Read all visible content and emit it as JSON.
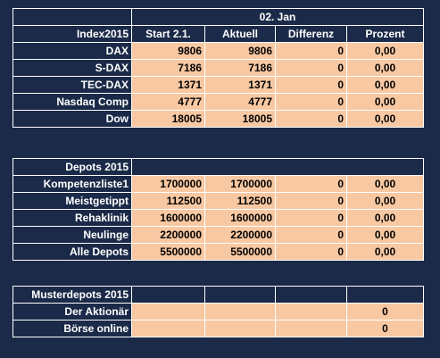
{
  "index": {
    "date": "02. Jan",
    "headers": [
      "Index2015",
      "Start 2.1.",
      "Aktuell",
      "Differenz",
      "Prozent"
    ],
    "rows": [
      {
        "name": "DAX",
        "start": "9806",
        "current": "9806",
        "diff": "0",
        "pct": "0,00"
      },
      {
        "name": "S-DAX",
        "start": "7186",
        "current": "7186",
        "diff": "0",
        "pct": "0,00"
      },
      {
        "name": "TEC-DAX",
        "start": "1371",
        "current": "1371",
        "diff": "0",
        "pct": "0,00"
      },
      {
        "name": "Nasdaq Comp",
        "start": "4777",
        "current": "4777",
        "diff": "0",
        "pct": "0,00"
      },
      {
        "name": "Dow",
        "start": "18005",
        "current": "18005",
        "diff": "0",
        "pct": "0,00"
      }
    ]
  },
  "depots": {
    "title": "Depots 2015",
    "rows": [
      {
        "name": "Kompetenzliste1",
        "start": "1700000",
        "current": "1700000",
        "diff": "0",
        "pct": "0,00"
      },
      {
        "name": "Meistgetippt",
        "start": "112500",
        "current": "112500",
        "diff": "0",
        "pct": "0,00"
      },
      {
        "name": "Rehaklinik",
        "start": "1600000",
        "current": "1600000",
        "diff": "0",
        "pct": "0,00"
      },
      {
        "name": "Neulinge",
        "start": "2200000",
        "current": "2200000",
        "diff": "0",
        "pct": "0,00"
      },
      {
        "name": "Alle Depots",
        "start": "5500000",
        "current": "5500000",
        "diff": "0",
        "pct": "0,00"
      }
    ]
  },
  "musterdepots": {
    "title": "Musterdepots 2015",
    "rows": [
      {
        "name": "Der Aktionär",
        "pct": "0"
      },
      {
        "name": "Börse online",
        "pct": "0"
      }
    ]
  }
}
